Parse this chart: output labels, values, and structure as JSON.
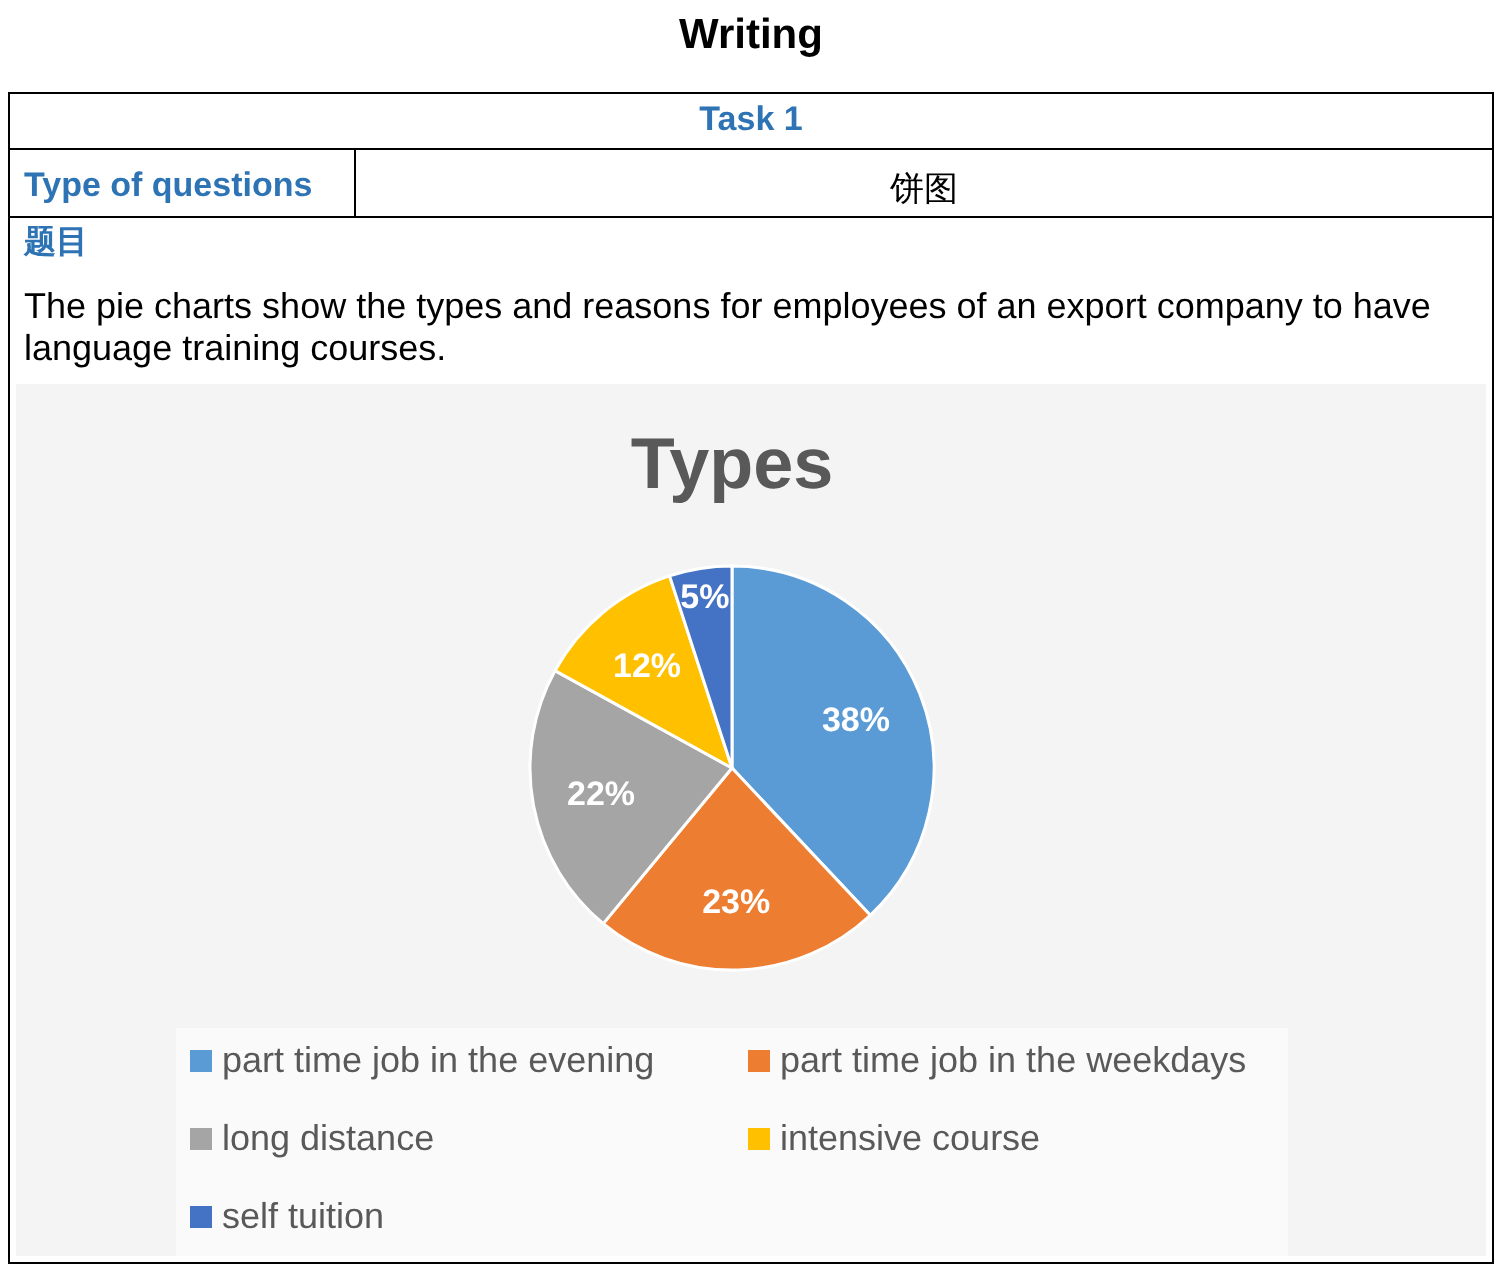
{
  "chart_data": {
    "type": "pie",
    "title": "Types",
    "annotations": [
      "Writing",
      "Task 1",
      "Type of questions",
      "饼图",
      "题目",
      "The pie charts show the types and reasons for employees of an export company to have language training courses."
    ],
    "categories": [
      "part time job in the evening",
      "part time job in the weekdays",
      "long distance",
      "intensive course",
      "self tuition"
    ],
    "values": [
      38,
      23,
      22,
      12,
      5
    ],
    "colors": [
      "#5b9bd5",
      "#ed7d31",
      "#a5a5a5",
      "#ffc000",
      "#4472c4"
    ],
    "value_labels": [
      "38%",
      "23%",
      "22%",
      "12%",
      "5%"
    ],
    "legend": "bottom"
  }
}
